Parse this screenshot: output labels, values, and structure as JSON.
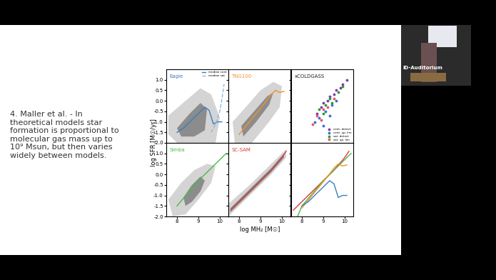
{
  "slide_text": [
    "4. Maller et al. - In",
    "theoretical models star",
    "formation is proportional to",
    "molecular gas mass up to",
    "10⁹ Msun, but then varies",
    "widely between models."
  ],
  "video_overlay": "ID-Auditorium",
  "shared_xlabel": "log MH₂ [M☉]",
  "shared_ylabel": "log SFR [M☉/yr]",
  "chart_data": [
    {
      "type": "line",
      "title": "Eagle",
      "color": "#3a7fbf",
      "xlim": [
        7.5,
        10.4
      ],
      "ylim": [
        -2.0,
        1.5
      ],
      "xticks": [
        8,
        9,
        10
      ],
      "yticks": [
        -2.0,
        -1.5,
        -1.0,
        -0.5,
        0.0,
        0.5,
        1.0
      ],
      "tick_labels": "y",
      "legend": "upper right",
      "regions": [
        {
          "color": "#d4d4d4",
          "x": [
            7.6,
            8.4,
            9.1,
            9.6,
            10.0,
            9.8,
            9.0,
            8.0,
            7.6
          ],
          "y": [
            -0.7,
            0.0,
            0.6,
            0.3,
            -0.8,
            -2.0,
            -2.0,
            -2.0,
            -1.6
          ]
        },
        {
          "color": "#8c8c8c",
          "x": [
            8.0,
            8.6,
            9.1,
            9.4,
            9.3,
            8.8,
            8.2
          ],
          "y": [
            -1.3,
            -0.6,
            -0.1,
            -0.4,
            -1.4,
            -1.7,
            -1.7
          ]
        }
      ],
      "series": [
        {
          "name": "median cent",
          "color": "#3a7fbf",
          "line_style": "solid",
          "x": [
            8.0,
            8.3,
            8.6,
            9.0,
            9.3,
            9.5,
            9.7,
            9.9,
            10.1
          ],
          "values": [
            -1.5,
            -1.3,
            -1.0,
            -0.6,
            -0.3,
            -0.45,
            -1.1,
            -1.0,
            -1.0
          ]
        },
        {
          "name": "median sat",
          "color": "#8fb8de",
          "line_style": "dashed",
          "x": [
            9.6,
            9.8,
            10.0,
            10.1,
            10.2
          ],
          "values": [
            -1.5,
            -1.1,
            -0.5,
            0.1,
            0.8
          ]
        }
      ]
    },
    {
      "type": "line",
      "title": "TNG100",
      "color": "#f0922b",
      "xlim": [
        7.5,
        10.4
      ],
      "ylim": [
        -2.0,
        1.5
      ],
      "xticks": [
        8,
        9,
        10
      ],
      "yticks": [
        -2.0,
        -1.5,
        -1.0,
        -0.5,
        0.0,
        0.5,
        1.0
      ],
      "tick_labels": false,
      "regions": [
        {
          "color": "#d4d4d4",
          "x": [
            7.7,
            8.4,
            9.0,
            9.6,
            10.0,
            9.9,
            9.4,
            8.6,
            7.8
          ],
          "y": [
            -1.0,
            -0.2,
            0.5,
            0.9,
            0.7,
            -0.3,
            -1.0,
            -2.0,
            -2.0
          ]
        },
        {
          "color": "#8c8c8c",
          "x": [
            8.1,
            8.7,
            9.3,
            9.6,
            9.4,
            8.8,
            8.2
          ],
          "y": [
            -1.2,
            -0.5,
            0.2,
            0.4,
            -0.2,
            -1.0,
            -1.7
          ]
        }
      ],
      "series": [
        {
          "color": "#f0922b",
          "line_style": "solid",
          "x": [
            8.0,
            8.4,
            8.8,
            9.2,
            9.5,
            9.7,
            9.9,
            10.1
          ],
          "values": [
            -1.6,
            -1.1,
            -0.6,
            -0.1,
            0.3,
            0.5,
            0.4,
            0.45
          ]
        }
      ]
    },
    {
      "type": "scatter",
      "title": "xCOLDGASS",
      "color": "#222222",
      "xlim": [
        7.5,
        10.4
      ],
      "ylim": [
        -2.0,
        1.5
      ],
      "xticks": [
        8,
        9,
        10
      ],
      "yticks": [
        -2.0,
        -1.5,
        -1.0,
        -0.5,
        0.0,
        0.5,
        1.0
      ],
      "tick_labels": false,
      "legend": "lower right",
      "series": [
        {
          "name": "cent. detect",
          "color": "#7a3ea6",
          "marker": "o",
          "x": [
            8.7,
            8.9,
            9.0,
            9.2,
            9.3,
            9.5,
            9.6,
            9.8,
            9.9,
            10.1
          ],
          "values": [
            -0.6,
            -0.3,
            -0.1,
            0.0,
            0.2,
            0.3,
            0.5,
            0.6,
            0.8,
            1.0
          ]
        },
        {
          "name": "cent. up. lim",
          "color": "#3a6fd8",
          "marker": "o",
          "x": [
            8.6,
            8.8,
            9.0,
            9.1,
            9.3,
            9.4,
            9.6
          ],
          "values": [
            -1.0,
            -0.8,
            -1.2,
            -0.5,
            -0.7,
            -0.2,
            0.0
          ]
        },
        {
          "name": "sat. detect",
          "color": "#2ca02c",
          "marker": "o",
          "x": [
            8.8,
            9.0,
            9.1,
            9.3,
            9.4,
            9.7,
            9.9
          ],
          "values": [
            -0.4,
            -0.6,
            -0.2,
            0.1,
            -0.1,
            0.4,
            0.7
          ]
        },
        {
          "name": "sat. up. lim",
          "color": "#e8556b",
          "marker": "o",
          "x": [
            8.5,
            8.7,
            8.9,
            9.0,
            9.2,
            9.5
          ],
          "values": [
            -1.1,
            -0.7,
            -0.9,
            -0.4,
            -0.3,
            0.1
          ]
        }
      ]
    },
    {
      "type": "line",
      "title": "Simba",
      "color": "#4bb84b",
      "xlim": [
        7.5,
        10.4
      ],
      "ylim": [
        -2.0,
        1.5
      ],
      "xticks": [
        8,
        9,
        10
      ],
      "yticks": [
        -2.0,
        -1.5,
        -1.0,
        -0.5,
        0.0,
        0.5,
        1.0
      ],
      "tick_labels": true,
      "regions": [
        {
          "color": "#d4d4d4",
          "x": [
            7.6,
            8.2,
            8.8,
            9.4,
            9.8,
            9.6,
            9.0,
            8.4,
            7.8
          ],
          "y": [
            -1.2,
            -0.4,
            0.2,
            0.5,
            0.4,
            -0.4,
            -1.2,
            -1.9,
            -2.0
          ]
        },
        {
          "color": "#8c8c8c",
          "x": [
            8.3,
            8.7,
            9.1,
            9.3,
            9.1,
            8.7,
            8.4
          ],
          "y": [
            -1.1,
            -0.5,
            -0.1,
            -0.3,
            -0.8,
            -1.3,
            -1.5
          ]
        }
      ],
      "series": [
        {
          "color": "#4bb84b",
          "line_style": "solid",
          "x": [
            8.0,
            8.5,
            9.0,
            9.5,
            10.0,
            10.3
          ],
          "values": [
            -1.5,
            -0.9,
            -0.3,
            0.2,
            0.7,
            1.0
          ]
        }
      ]
    },
    {
      "type": "line",
      "title": "SC-SAM",
      "color": "#d63a3a",
      "xlim": [
        7.5,
        10.4
      ],
      "ylim": [
        -2.0,
        1.5
      ],
      "xticks": [
        8,
        9,
        10
      ],
      "yticks": [
        -2.0,
        -1.5,
        -1.0,
        -0.5,
        0.0,
        0.5,
        1.0
      ],
      "tick_labels": "x",
      "regions": [
        {
          "color": "#d4d4d4",
          "x": [
            7.5,
            8.5,
            9.5,
            10.2,
            10.2,
            9.5,
            8.5,
            7.5
          ],
          "y": [
            -1.4,
            -0.5,
            0.5,
            1.2,
            0.8,
            0.0,
            -1.0,
            -2.0
          ]
        },
        {
          "color": "#8c8c8c",
          "x": [
            7.6,
            8.5,
            9.5,
            10.1,
            10.1,
            9.5,
            8.5,
            7.6
          ],
          "y": [
            -1.6,
            -0.7,
            0.3,
            1.0,
            0.8,
            0.1,
            -0.9,
            -1.8
          ]
        }
      ],
      "series": [
        {
          "color": "#d63a3a",
          "line_style": "solid",
          "x": [
            7.6,
            8.0,
            8.5,
            9.0,
            9.5,
            10.0,
            10.2
          ],
          "values": [
            -1.7,
            -1.3,
            -0.8,
            -0.3,
            0.2,
            0.8,
            1.1
          ]
        }
      ]
    },
    {
      "type": "line",
      "xlim": [
        7.5,
        10.4
      ],
      "ylim": [
        -2.0,
        1.5
      ],
      "xticks": [
        8,
        9,
        10
      ],
      "yticks": [
        -2.0,
        -1.5,
        -1.0,
        -0.5,
        0.0,
        0.5,
        1.0
      ],
      "tick_labels": "x",
      "series": [
        {
          "color": "#d63a3a",
          "line_style": "solid",
          "x": [
            7.6,
            8.0,
            8.5,
            9.0,
            9.5,
            10.0,
            10.2
          ],
          "values": [
            -1.7,
            -1.3,
            -0.8,
            -0.3,
            0.2,
            0.8,
            1.1
          ]
        },
        {
          "color": "#4bb84b",
          "line_style": "solid",
          "x": [
            7.8,
            8.0,
            8.5,
            9.0,
            9.5,
            10.0,
            10.3
          ],
          "values": [
            -2.0,
            -1.5,
            -0.9,
            -0.3,
            0.2,
            0.7,
            1.0
          ]
        },
        {
          "color": "#f0922b",
          "line_style": "solid",
          "x": [
            8.0,
            8.4,
            8.8,
            9.2,
            9.5,
            9.7,
            9.9,
            10.1
          ],
          "values": [
            -1.6,
            -1.1,
            -0.6,
            -0.1,
            0.3,
            0.5,
            0.4,
            0.45
          ]
        },
        {
          "color": "#3a7fbf",
          "line_style": "solid",
          "x": [
            8.0,
            8.3,
            8.6,
            9.0,
            9.3,
            9.5,
            9.7,
            9.9,
            10.1
          ],
          "values": [
            -1.5,
            -1.3,
            -1.0,
            -0.6,
            -0.3,
            -0.45,
            -1.1,
            -1.0,
            -1.0
          ]
        }
      ]
    }
  ]
}
